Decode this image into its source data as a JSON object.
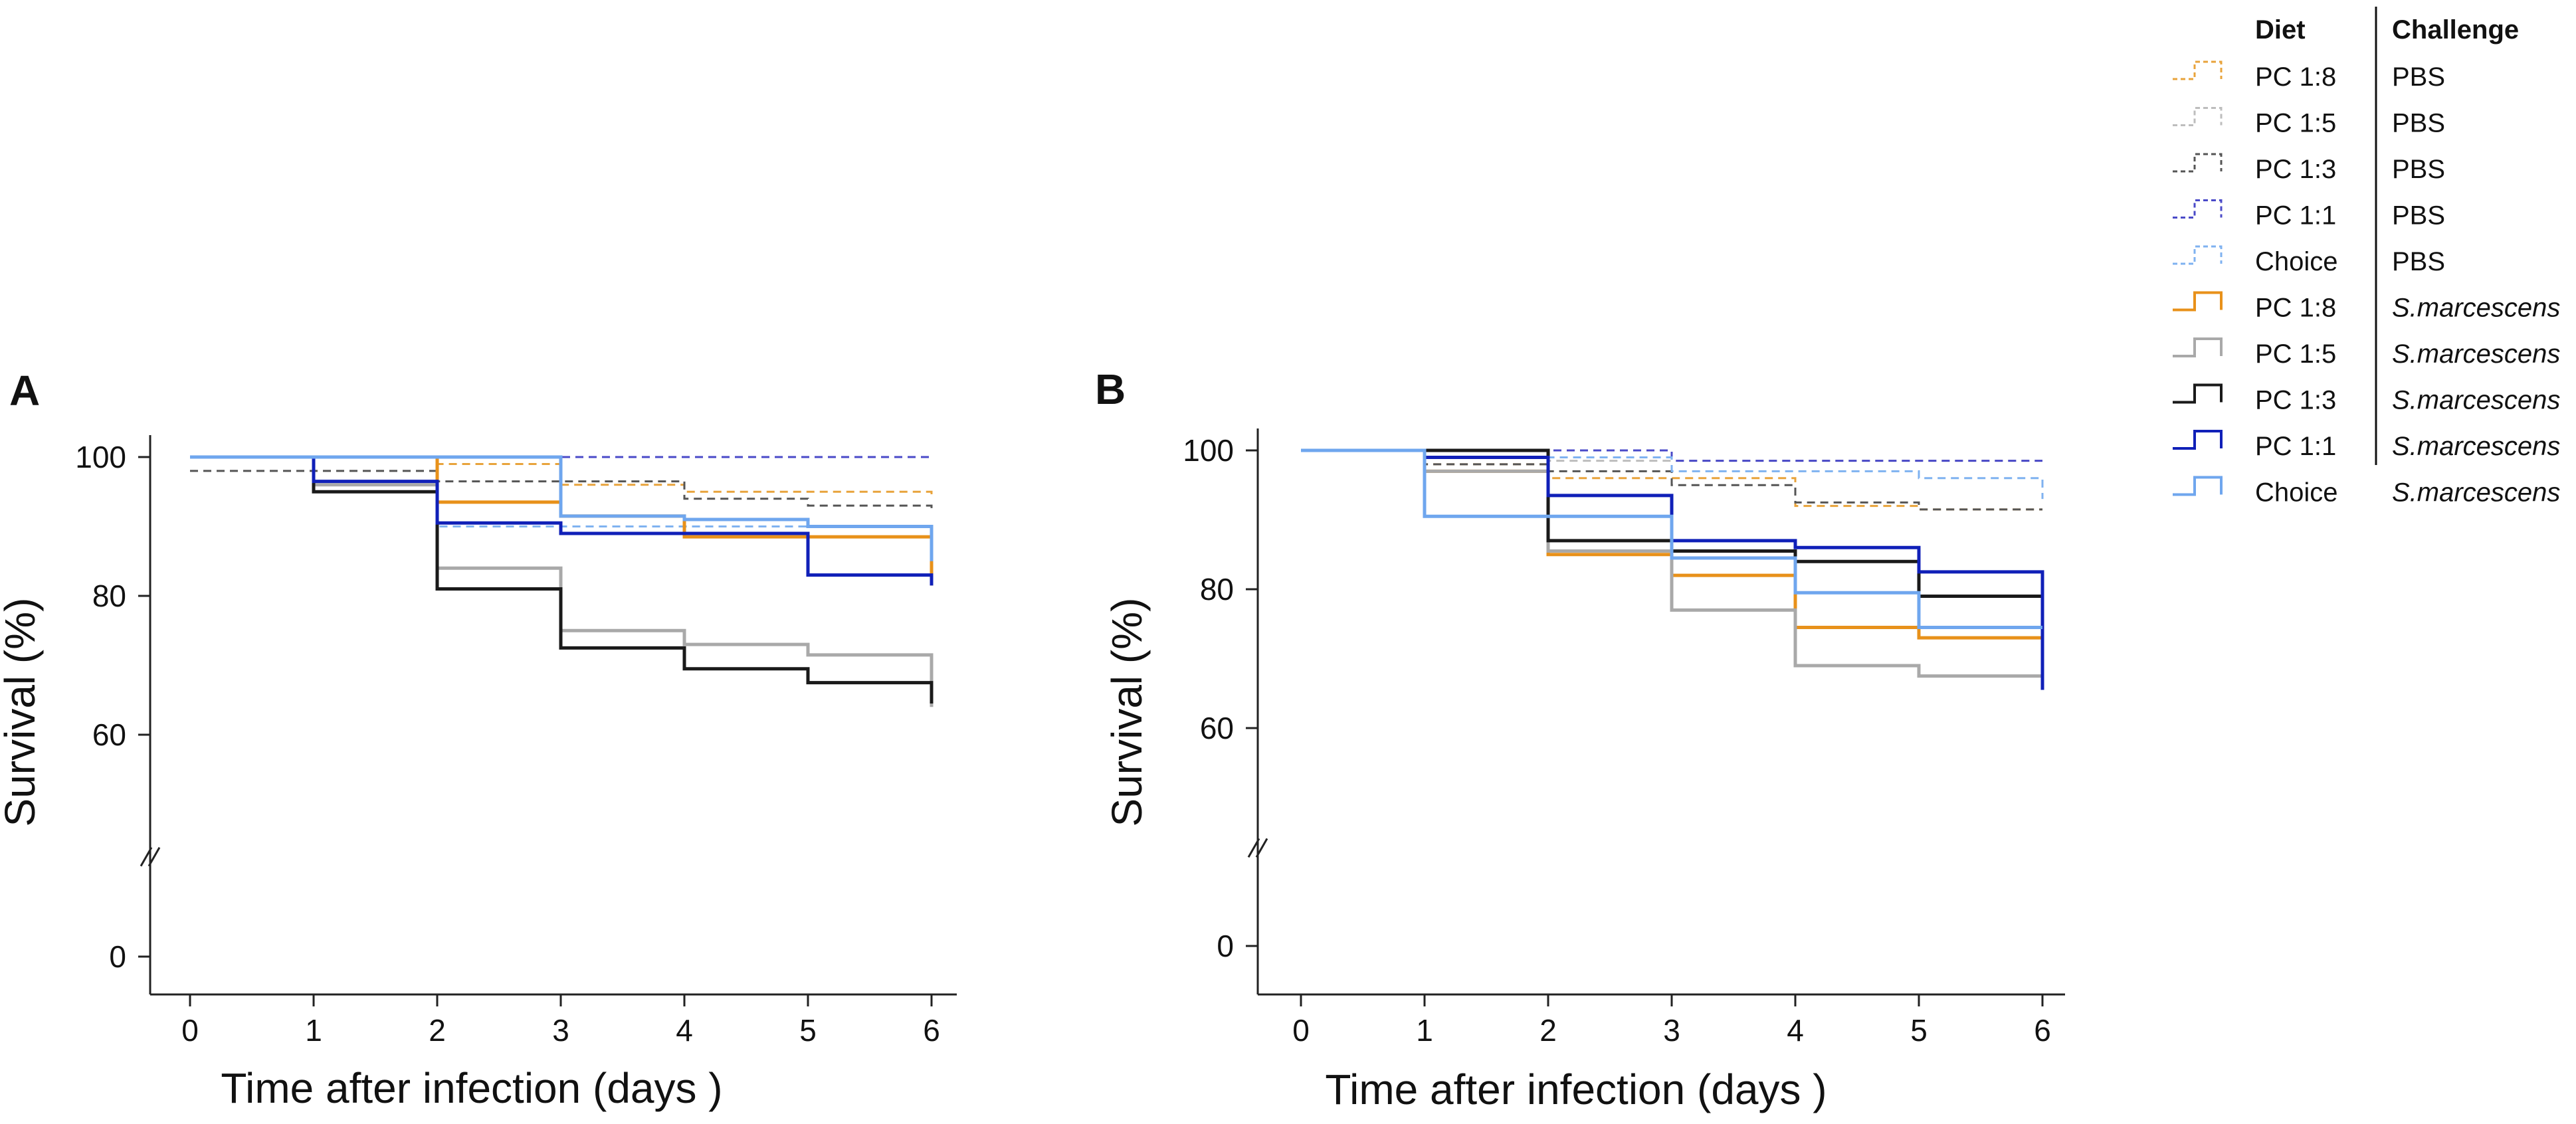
{
  "legend": {
    "diet_header": "Diet",
    "challenge_header": "Challenge",
    "entries": [
      {
        "diet": "PC 1:8",
        "challenge": "PBS",
        "italic": false,
        "color": "#E8A33B",
        "dashed": true
      },
      {
        "diet": "PC 1:5",
        "challenge": "PBS",
        "italic": false,
        "color": "#BDBDBD",
        "dashed": true
      },
      {
        "diet": "PC 1:3",
        "challenge": "PBS",
        "italic": false,
        "color": "#555555",
        "dashed": true
      },
      {
        "diet": "PC 1:1",
        "challenge": "PBS",
        "italic": false,
        "color": "#4A4AC8",
        "dashed": true
      },
      {
        "diet": "Choice",
        "challenge": "PBS",
        "italic": false,
        "color": "#7FB2F0",
        "dashed": true
      },
      {
        "diet": "PC 1:8",
        "challenge": "S.marcescens",
        "italic": true,
        "color": "#E8911A",
        "dashed": false
      },
      {
        "diet": "PC 1:5",
        "challenge": "S.marcescens",
        "italic": true,
        "color": "#A9A9A9",
        "dashed": false
      },
      {
        "diet": "PC 1:3",
        "challenge": "S.marcescens",
        "italic": true,
        "color": "#1A1A1A",
        "dashed": false
      },
      {
        "diet": "PC 1:1",
        "challenge": "S.marcescens",
        "italic": true,
        "color": "#1020B8",
        "dashed": false
      },
      {
        "diet": "Choice",
        "challenge": "S.marcescens",
        "italic": true,
        "color": "#6FA6EE",
        "dashed": false
      }
    ]
  },
  "chart_data": [
    {
      "panel": "A",
      "type": "line",
      "step": true,
      "xlabel": "Time after infection (days )",
      "ylabel": "Survival (%)",
      "xlim": [
        0,
        6
      ],
      "x_ticks": [
        "0",
        "1",
        "2",
        "3",
        "4",
        "5",
        "6"
      ],
      "y_ticks": [
        "0",
        "60",
        "80",
        "100"
      ],
      "y_break": "//",
      "series": [
        {
          "name": "PC 1:8 PBS",
          "x": [
            0,
            1,
            2,
            3,
            4,
            5,
            6
          ],
          "y": [
            100,
            100,
            99,
            96,
            95,
            95,
            94
          ]
        },
        {
          "name": "PC 1:5 PBS",
          "x": [
            0,
            1,
            2,
            3,
            4,
            5,
            6
          ],
          "y": [
            100,
            100,
            100,
            100,
            100,
            100,
            100
          ]
        },
        {
          "name": "PC 1:3 PBS",
          "x": [
            0,
            1,
            2,
            3,
            4,
            5,
            6
          ],
          "y": [
            98,
            98,
            96.5,
            96.5,
            94,
            93,
            92
          ]
        },
        {
          "name": "PC 1:1 PBS",
          "x": [
            0,
            1,
            2,
            3,
            4,
            5,
            6
          ],
          "y": [
            100,
            100,
            100,
            100,
            100,
            100,
            100
          ]
        },
        {
          "name": "Choice PBS",
          "x": [
            0,
            1,
            2,
            3,
            4,
            5,
            6
          ],
          "y": [
            100,
            100,
            90,
            90,
            90,
            90,
            90
          ]
        },
        {
          "name": "PC 1:8 S.marcescens",
          "x": [
            0,
            1,
            2,
            3,
            4,
            5,
            6
          ],
          "y": [
            100,
            100,
            93.5,
            91.5,
            88.5,
            88.5,
            81.5
          ]
        },
        {
          "name": "PC 1:5 S.marcescens",
          "x": [
            0,
            1,
            2,
            3,
            4,
            5,
            6
          ],
          "y": [
            100,
            96,
            84,
            75,
            73,
            71.5,
            64
          ]
        },
        {
          "name": "PC 1:3 S.marcescens",
          "x": [
            0,
            1,
            2,
            3,
            4,
            5,
            6
          ],
          "y": [
            100,
            95,
            81,
            72.5,
            69.5,
            67.5,
            64.5
          ]
        },
        {
          "name": "PC 1:1 S.marcescens",
          "x": [
            0,
            1,
            2,
            3,
            4,
            5,
            6
          ],
          "y": [
            100,
            96.5,
            90.5,
            89,
            89,
            83,
            81.5
          ]
        },
        {
          "name": "Choice S.marcescens",
          "x": [
            0,
            1,
            2,
            3,
            4,
            5,
            6
          ],
          "y": [
            100,
            100,
            100,
            91.5,
            91,
            90,
            85
          ]
        }
      ]
    },
    {
      "panel": "B",
      "type": "line",
      "step": true,
      "xlabel": "Time after infection (days )",
      "ylabel": "Survival (%)",
      "xlim": [
        0,
        6
      ],
      "x_ticks": [
        "0",
        "1",
        "2",
        "3",
        "4",
        "5",
        "6"
      ],
      "y_ticks": [
        "0",
        "60",
        "80",
        "100"
      ],
      "y_break": "//",
      "series": [
        {
          "name": "PC 1:8 PBS",
          "x": [
            0,
            1,
            2,
            3,
            4,
            5,
            6
          ],
          "y": [
            100,
            98,
            96,
            96,
            92,
            91.5,
            91.5
          ]
        },
        {
          "name": "PC 1:5 PBS",
          "x": [
            0,
            1,
            2,
            3,
            4,
            5,
            6
          ],
          "y": [
            100,
            99,
            98.5,
            98.5,
            98.5,
            98.5,
            98.5
          ]
        },
        {
          "name": "PC 1:3 PBS",
          "x": [
            0,
            1,
            2,
            3,
            4,
            5,
            6
          ],
          "y": [
            100,
            98,
            97,
            95,
            92.5,
            91.5,
            91.5
          ]
        },
        {
          "name": "PC 1:1 PBS",
          "x": [
            0,
            1,
            2,
            3,
            4,
            5,
            6
          ],
          "y": [
            100,
            100,
            100,
            98.5,
            98.5,
            98.5,
            98.5
          ]
        },
        {
          "name": "Choice PBS",
          "x": [
            0,
            1,
            2,
            3,
            4,
            5,
            6
          ],
          "y": [
            100,
            100,
            99,
            97,
            97,
            96,
            93
          ]
        },
        {
          "name": "PC 1:8 S.marcescens",
          "x": [
            0,
            1,
            2,
            3,
            4,
            5,
            6
          ],
          "y": [
            100,
            97,
            85,
            82,
            74.5,
            73,
            72.5
          ]
        },
        {
          "name": "PC 1:5 S.marcescens",
          "x": [
            0,
            1,
            2,
            3,
            4,
            5,
            6
          ],
          "y": [
            100,
            97,
            85.5,
            77,
            69,
            67.5,
            67.5
          ]
        },
        {
          "name": "PC 1:3 S.marcescens",
          "x": [
            0,
            1,
            2,
            3,
            4,
            5,
            6
          ],
          "y": [
            100,
            100,
            87,
            85.5,
            84,
            79,
            72
          ]
        },
        {
          "name": "PC 1:1 S.marcescens",
          "x": [
            0,
            1,
            2,
            3,
            4,
            5,
            6
          ],
          "y": [
            100,
            99,
            93.5,
            87,
            86,
            82.5,
            65.5
          ]
        },
        {
          "name": "Choice S.marcescens",
          "x": [
            0,
            1,
            2,
            3,
            4,
            5,
            6
          ],
          "y": [
            100,
            90.5,
            90.5,
            84.5,
            79.5,
            74.5,
            74.5
          ]
        }
      ]
    }
  ]
}
